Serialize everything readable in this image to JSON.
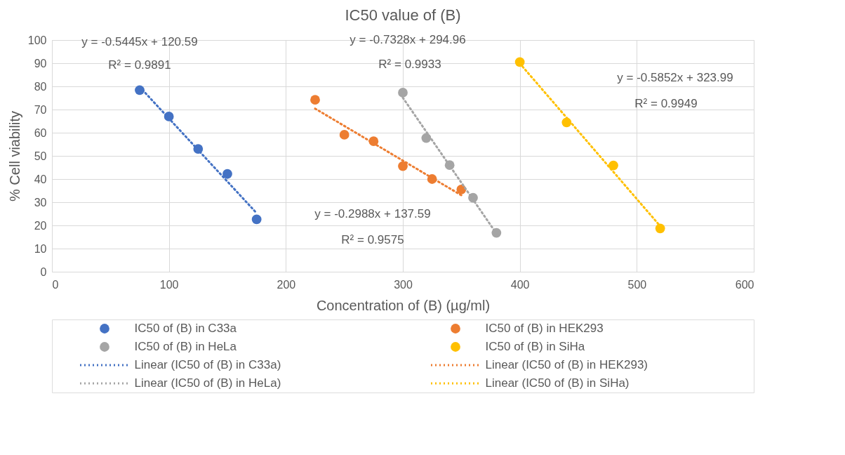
{
  "chart_data": {
    "type": "scatter",
    "title": "IC50 value of (B)",
    "xlabel": "Concentration of (B) (µg/ml)",
    "ylabel": "% Cell viability",
    "xlim": [
      0,
      600
    ],
    "xticks": [
      0,
      100,
      200,
      300,
      400,
      500,
      600
    ],
    "ylim": [
      0,
      100
    ],
    "yticks": [
      0,
      10,
      20,
      30,
      40,
      50,
      60,
      70,
      80,
      90,
      100
    ],
    "grid": true,
    "legend": "bottom",
    "marker": "circle",
    "series": [
      {
        "name": "IC50 of (B) in C33a",
        "color": "#4472c4",
        "x": [
          75,
          100,
          125,
          150,
          175
        ],
        "values": [
          78.4,
          67.0,
          53.0,
          42.2,
          22.6
        ]
      },
      {
        "name": "IC50 of (B) in HEK293",
        "color": "#ed7d31",
        "x": [
          225,
          250,
          275,
          300,
          325,
          350
        ],
        "values": [
          74.2,
          59.1,
          56.3,
          45.6,
          40.0,
          35.5
        ]
      },
      {
        "name": "IC50 of (B) in HeLa",
        "color": "#a5a5a5",
        "x": [
          300,
          320,
          340,
          360,
          380
        ],
        "values": [
          77.3,
          57.7,
          46.0,
          31.9,
          16.8
        ]
      },
      {
        "name": "IC50 of (B) in SiHa",
        "color": "#ffc000",
        "x": [
          400,
          440,
          480,
          520
        ],
        "values": [
          90.5,
          64.4,
          45.9,
          18.7
        ]
      },
      {
        "name": "Linear (IC50 of (B) in C33a)",
        "color": "#4472c4",
        "type": "line",
        "marker": "none",
        "line_style": "dotted",
        "x": [
          75,
          175
        ],
        "values": [
          79.8,
          25.3
        ]
      },
      {
        "name": "Linear (IC50 of (B) in HEK293)",
        "color": "#ed7d31",
        "type": "line",
        "marker": "none",
        "line_style": "dotted",
        "x": [
          225,
          350
        ],
        "values": [
          70.4,
          33.0
        ]
      },
      {
        "name": "Linear (IC50 of (B) in HeLa)",
        "color": "#a5a5a5",
        "type": "line",
        "marker": "none",
        "line_style": "dotted",
        "x": [
          300,
          380
        ],
        "values": [
          75.1,
          16.5
        ]
      },
      {
        "name": "Linear (IC50 of (B) in SiHa)",
        "color": "#ffc000",
        "type": "line",
        "marker": "none",
        "line_style": "dotted",
        "x": [
          400,
          520
        ],
        "values": [
          89.9,
          19.7
        ]
      }
    ],
    "annotations": [
      "y = -0.5445x + 120.59",
      "R² = 0.9891",
      "y = -0.7328x + 294.96",
      "R² = 0.9933",
      "y = -0.2988x + 137.59",
      "R² = 0.9575",
      "y = -0.5852x + 323.99",
      "R² = 0.9949"
    ]
  }
}
